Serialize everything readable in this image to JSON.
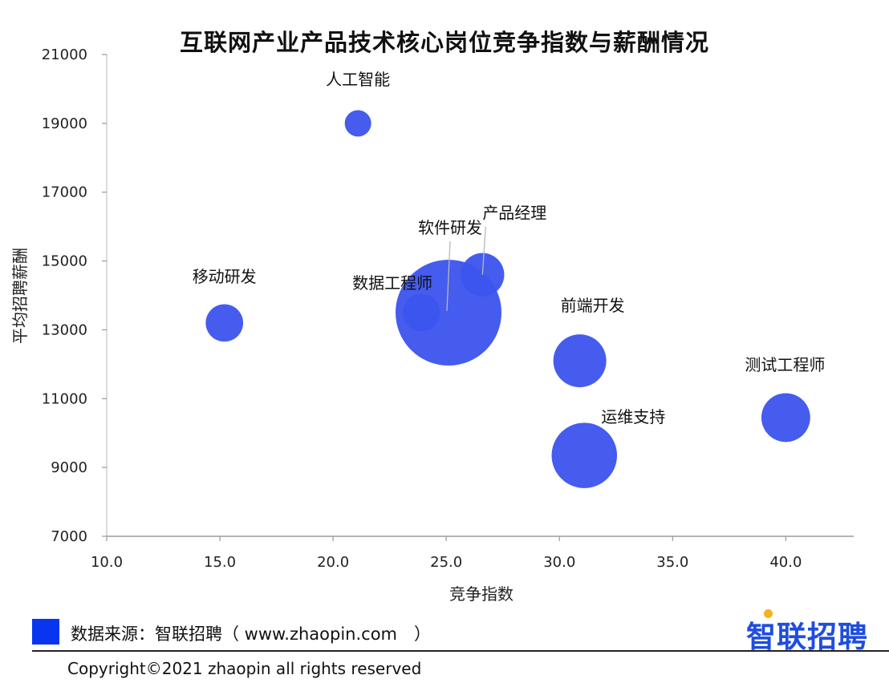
{
  "title": "互联网产业产品技术核心岗位竞争指数与薪酬情况",
  "source": {
    "text": "数据来源：智联招聘（ www.zhaopin.com　）",
    "swatch_color": "#0a35f0"
  },
  "brand": {
    "name": "智联招聘",
    "color": "#1f4dde",
    "accent_color": "#f7b21b"
  },
  "copyright": "Copyright©2021 zhaopin all rights reserved",
  "chart_data": {
    "type": "scatter",
    "bubble": true,
    "xlabel": "竞争指数",
    "ylabel": "平均招聘薪酬",
    "xlim": [
      10,
      43
    ],
    "ylim": [
      7000,
      21000
    ],
    "x_ticks": [
      "10.0",
      "15.0",
      "20.0",
      "25.0",
      "30.0",
      "35.0",
      "40.0"
    ],
    "x_tick_values": [
      10,
      15,
      20,
      25,
      30,
      35,
      40
    ],
    "y_ticks": [
      "21000",
      "19000",
      "17000",
      "15000",
      "13000",
      "11000",
      "9000",
      "7000"
    ],
    "y_tick_values": [
      21000,
      19000,
      17000,
      15000,
      13000,
      11000,
      9000,
      7000
    ],
    "grid": false,
    "bubble_color": "#3d55ee",
    "points": [
      {
        "label": "人工智能",
        "x": 21.1,
        "y": 19000,
        "size": 1.0
      },
      {
        "label": "移动研发",
        "x": 15.2,
        "y": 13200,
        "size": 2.0
      },
      {
        "label": "数据工程师",
        "x": 23.9,
        "y": 13500,
        "size": 2.0
      },
      {
        "label": "软件研发",
        "x": 25.1,
        "y": 13500,
        "size": 16.0
      },
      {
        "label": "产品经理",
        "x": 26.6,
        "y": 14600,
        "size": 2.7
      },
      {
        "label": "前端开发",
        "x": 30.9,
        "y": 12100,
        "size": 4.0
      },
      {
        "label": "运维支持",
        "x": 31.1,
        "y": 9350,
        "size": 6.1
      },
      {
        "label": "测试工程师",
        "x": 40.0,
        "y": 10450,
        "size": 3.4
      }
    ]
  }
}
